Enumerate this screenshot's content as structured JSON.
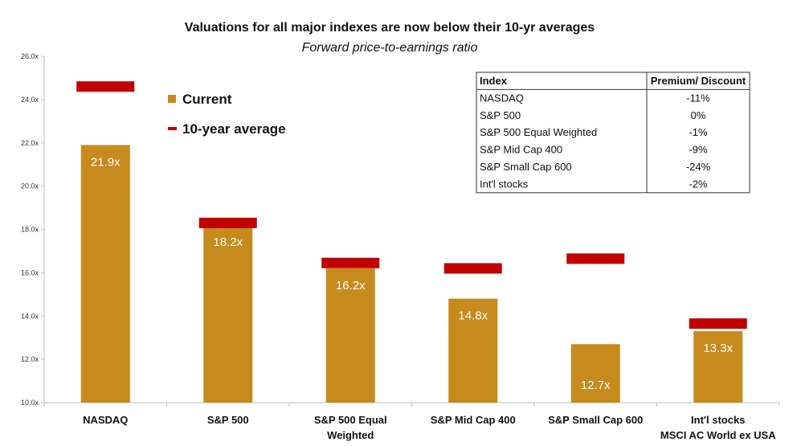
{
  "chart_data": {
    "type": "bar",
    "title": "Valuations for all major indexes are now below their 10-yr averages",
    "subtitle": "Forward price-to-earnings ratio",
    "xlabel": "",
    "ylabel": "",
    "ylim": [
      10,
      26
    ],
    "yticks": [
      "10.0x",
      "12.0x",
      "14.0x",
      "16.0x",
      "18.0x",
      "20.0x",
      "22.0x",
      "24.0x",
      "26.0x"
    ],
    "categories": [
      [
        "NASDAQ"
      ],
      [
        "S&P 500"
      ],
      [
        "S&P 500 Equal",
        "Weighted"
      ],
      [
        "S&P Mid Cap 400"
      ],
      [
        "S&P Small Cap 600"
      ],
      [
        "Int'l stocks",
        "MSCI AC World ex USA"
      ]
    ],
    "series": [
      {
        "name": "Current",
        "color": "#c68a1d",
        "values": [
          21.9,
          18.2,
          16.2,
          14.8,
          12.7,
          13.3
        ],
        "labels": [
          "21.9x",
          "18.2x",
          "16.2x",
          "14.8x",
          "12.7x",
          "13.3x"
        ]
      },
      {
        "name": "10-year average",
        "color": "#c00000",
        "values": [
          24.6,
          18.3,
          16.45,
          16.2,
          16.65,
          13.65
        ]
      }
    ],
    "legend_position": "top-left",
    "grid": false
  },
  "table": {
    "headers": [
      "Index",
      "Premium/ Discount"
    ],
    "rows": [
      [
        "NASDAQ",
        "-11%"
      ],
      [
        "S&P 500",
        "0%"
      ],
      [
        "S&P 500 Equal Weighted",
        "-1%"
      ],
      [
        "S&P Mid Cap 400",
        "-9%"
      ],
      [
        "S&P Small Cap 600",
        "-24%"
      ],
      [
        "Int'l stocks",
        "-2%"
      ]
    ]
  }
}
